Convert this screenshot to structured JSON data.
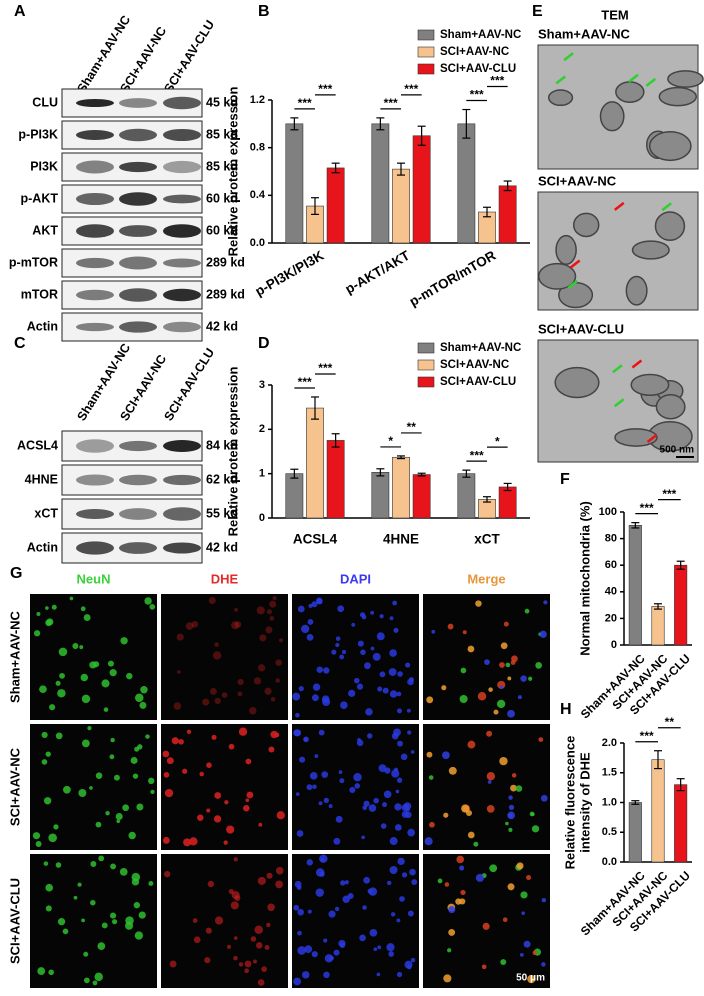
{
  "panel_letters": [
    "A",
    "B",
    "C",
    "D",
    "E",
    "F",
    "G",
    "H"
  ],
  "blot_a": {
    "groups": [
      "Sham+AAV-NC",
      "SCI+AAV-NC",
      "SCI+AAV-CLU"
    ],
    "bands": [
      {
        "name": "CLU",
        "size": "45 kd"
      },
      {
        "name": "p-PI3K",
        "size": "85 kd"
      },
      {
        "name": "PI3K",
        "size": "85 kd"
      },
      {
        "name": "p-AKT",
        "size": "60 kd"
      },
      {
        "name": "AKT",
        "size": "60 kd"
      },
      {
        "name": "p-mTOR",
        "size": "289 kd"
      },
      {
        "name": "mTOR",
        "size": "289 kd"
      },
      {
        "name": "Actin",
        "size": "42 kd"
      }
    ]
  },
  "blot_c": {
    "groups": [
      "Sham+AAV-NC",
      "SCI+AAV-NC",
      "SCI+AAV-CLU"
    ],
    "bands": [
      {
        "name": "ACSL4",
        "size": "84 kd"
      },
      {
        "name": "4HNE",
        "size": "62 kd"
      },
      {
        "name": "xCT",
        "size": "55 kd"
      },
      {
        "name": "Actin",
        "size": "42 kd"
      }
    ]
  },
  "tem": {
    "title": "TEM",
    "rows": [
      "Sham+AAV-NC",
      "SCI+AAV-NC",
      "SCI+AAV-CLU"
    ],
    "scale_bar": "500 nm"
  },
  "fluorescence": {
    "channels": [
      "NeuN",
      "DHE",
      "DAPI",
      "Merge"
    ],
    "rows": [
      "Sham+AAV-NC",
      "SCI+AAV-NC",
      "SCI+AAV-CLU"
    ],
    "scale_bar": "50 μm"
  },
  "chart_data": [
    {
      "type": "bar",
      "ylabel": "Relative protein expression",
      "categories": [
        "p-PI3K/PI3K",
        "p-AKT/AKT",
        "p-mTOR/mTOR"
      ],
      "ylim": [
        0,
        1.2
      ],
      "yticks": [
        {
          "value": 0,
          "label": "0.0"
        },
        0.4,
        0.8,
        1.2
      ],
      "series": [
        {
          "name": "Sham+AAV-NC",
          "color": "#808080",
          "values": [
            1.0,
            1.0,
            1.0
          ],
          "errors": [
            0.05,
            0.05,
            0.12
          ]
        },
        {
          "name": "SCI+AAV-NC",
          "color": "#f6c28e",
          "values": [
            0.31,
            0.62,
            0.26
          ],
          "errors": [
            0.07,
            0.05,
            0.04
          ]
        },
        {
          "name": "SCI+AAV-CLU",
          "color": "#e8141b",
          "values": [
            0.63,
            0.9,
            0.48
          ],
          "errors": [
            0.04,
            0.08,
            0.04
          ]
        }
      ],
      "significance": [
        {
          "label": "***",
          "category": 0,
          "from": 0,
          "to": 1
        },
        {
          "label": "***",
          "category": 0,
          "from": 1,
          "to": 2
        },
        {
          "label": "***",
          "category": 1,
          "from": 0,
          "to": 1
        },
        {
          "label": "***",
          "category": 1,
          "from": 1,
          "to": 2
        },
        {
          "label": "***",
          "category": 2,
          "from": 0,
          "to": 1
        },
        {
          "label": "***",
          "category": 2,
          "from": 1,
          "to": 2
        }
      ]
    },
    {
      "type": "bar",
      "ylabel": "Relative protein expression",
      "categories": [
        "ACSL4",
        "4HNE",
        "xCT"
      ],
      "ylim": [
        0,
        3
      ],
      "yticks": [
        0,
        1,
        2,
        3
      ],
      "series": [
        {
          "name": "Sham+AAV-NC",
          "color": "#808080",
          "values": [
            1.0,
            1.03,
            1.0
          ],
          "errors": [
            0.1,
            0.08,
            0.08
          ]
        },
        {
          "name": "SCI+AAV-NC",
          "color": "#f6c28e",
          "values": [
            2.48,
            1.37,
            0.42
          ],
          "errors": [
            0.25,
            0.03,
            0.06
          ]
        },
        {
          "name": "SCI+AAV-CLU",
          "color": "#e8141b",
          "values": [
            1.75,
            0.98,
            0.7
          ],
          "errors": [
            0.15,
            0.03,
            0.08
          ]
        }
      ],
      "significance": [
        {
          "label": "***",
          "category": 0,
          "from": 0,
          "to": 1
        },
        {
          "label": "***",
          "category": 0,
          "from": 1,
          "to": 2
        },
        {
          "label": "*",
          "category": 1,
          "from": 0,
          "to": 1
        },
        {
          "label": "**",
          "category": 1,
          "from": 1,
          "to": 2
        },
        {
          "label": "***",
          "category": 2,
          "from": 0,
          "to": 1
        },
        {
          "label": "*",
          "category": 2,
          "from": 1,
          "to": 2
        }
      ]
    },
    {
      "type": "bar",
      "ylabel": "Normal mitochondria (%)",
      "categories": [
        "Sham+AAV-NC",
        "SCI+AAV-NC",
        "SCI+AAV-CLU"
      ],
      "values": [
        90,
        29,
        60
      ],
      "errors": [
        2,
        2,
        3
      ],
      "colors": [
        "#808080",
        "#f6c28e",
        "#e8141b"
      ],
      "ylim": [
        0,
        100
      ],
      "yticks": [
        0,
        20,
        40,
        60,
        80,
        100
      ],
      "significance": [
        {
          "label": "***",
          "from": 0,
          "to": 1
        },
        {
          "label": "***",
          "from": 1,
          "to": 2
        }
      ]
    },
    {
      "type": "bar",
      "ylabel": [
        "Relative fluorescence",
        "intensity of DHE"
      ],
      "categories": [
        "Sham+AAV-NC",
        "SCI+AAV-NC",
        "SCI+AAV-CLU"
      ],
      "values": [
        1.0,
        1.72,
        1.3
      ],
      "errors": [
        0.03,
        0.15,
        0.1
      ],
      "colors": [
        "#808080",
        "#f6c28e",
        "#e8141b"
      ],
      "ylim": [
        0,
        2.0
      ],
      "yticks": [
        {
          "value": 0,
          "label": "0.0"
        },
        0.5,
        {
          "value": 1,
          "label": "1.0"
        },
        1.5,
        {
          "value": 2,
          "label": "2.0"
        }
      ],
      "significance": [
        {
          "label": "***",
          "from": 0,
          "to": 1
        },
        {
          "label": "**",
          "from": 1,
          "to": 2
        }
      ]
    }
  ]
}
